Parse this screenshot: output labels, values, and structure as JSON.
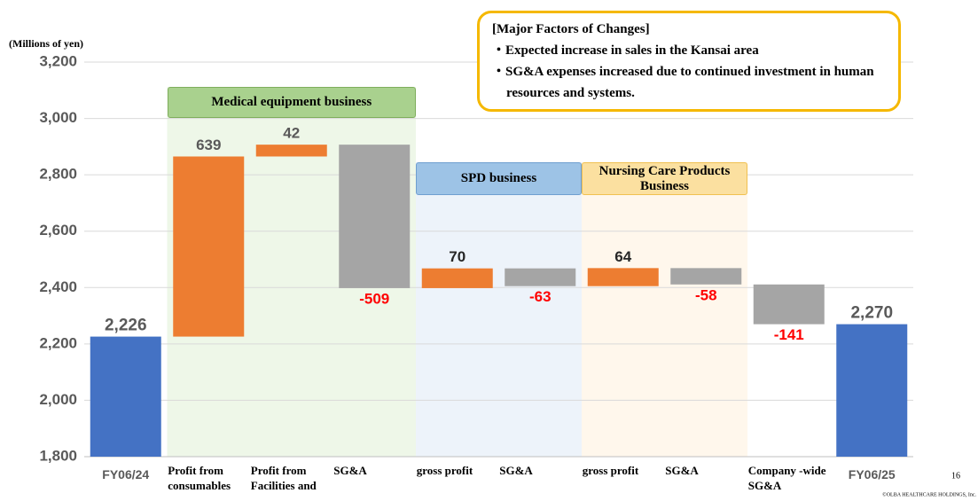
{
  "chart_data": {
    "type": "waterfall",
    "y_axis_label": "(Millions of yen)",
    "categories": [
      "FY06/24",
      "Profit from consumables",
      "Profit from Facilities and",
      "SG&A",
      "gross profit",
      "SG&A",
      "gross profit",
      "SG&A",
      "Company -wide SG&A",
      "FY06/25"
    ],
    "values": [
      2226,
      639,
      42,
      -509,
      70,
      -63,
      64,
      -58,
      -141,
      2270
    ],
    "value_labels": [
      "2,226",
      null,
      null,
      null,
      null,
      null,
      null,
      null,
      null,
      "2,270"
    ],
    "totals": [
      true,
      false,
      false,
      false,
      false,
      false,
      false,
      false,
      false,
      true
    ],
    "colors": {
      "total": "#4472c4",
      "increase": "#ed7d31",
      "decrease": "#a5a5a5"
    },
    "ylim": [
      1800,
      3200
    ],
    "yticks": [
      {
        "value": 1800,
        "label": "1,800"
      },
      {
        "value": 2000,
        "label": "2,000"
      },
      {
        "value": 2200,
        "label": "2,200"
      },
      {
        "value": 2400,
        "label": "2,400"
      },
      {
        "value": 2600,
        "label": "2,600"
      },
      {
        "value": 2800,
        "label": "2,800"
      },
      {
        "value": 3000,
        "label": "3,000"
      },
      {
        "value": 3200,
        "label": "3,200"
      }
    ],
    "grid": true,
    "groups": [
      "Medical equipment business",
      "SPD business",
      "Nursing Care Products Business"
    ],
    "note": {
      "title": "[Major Factors of Changes]",
      "items": [
        "・Expected increase in sales in the Kansai area",
        "・SG&A expenses increased due to continued investment in human resources and systems."
      ]
    },
    "page_number": "16",
    "copyright": "©OLBA HEALTHCARE HOLDINGS, Inc."
  }
}
